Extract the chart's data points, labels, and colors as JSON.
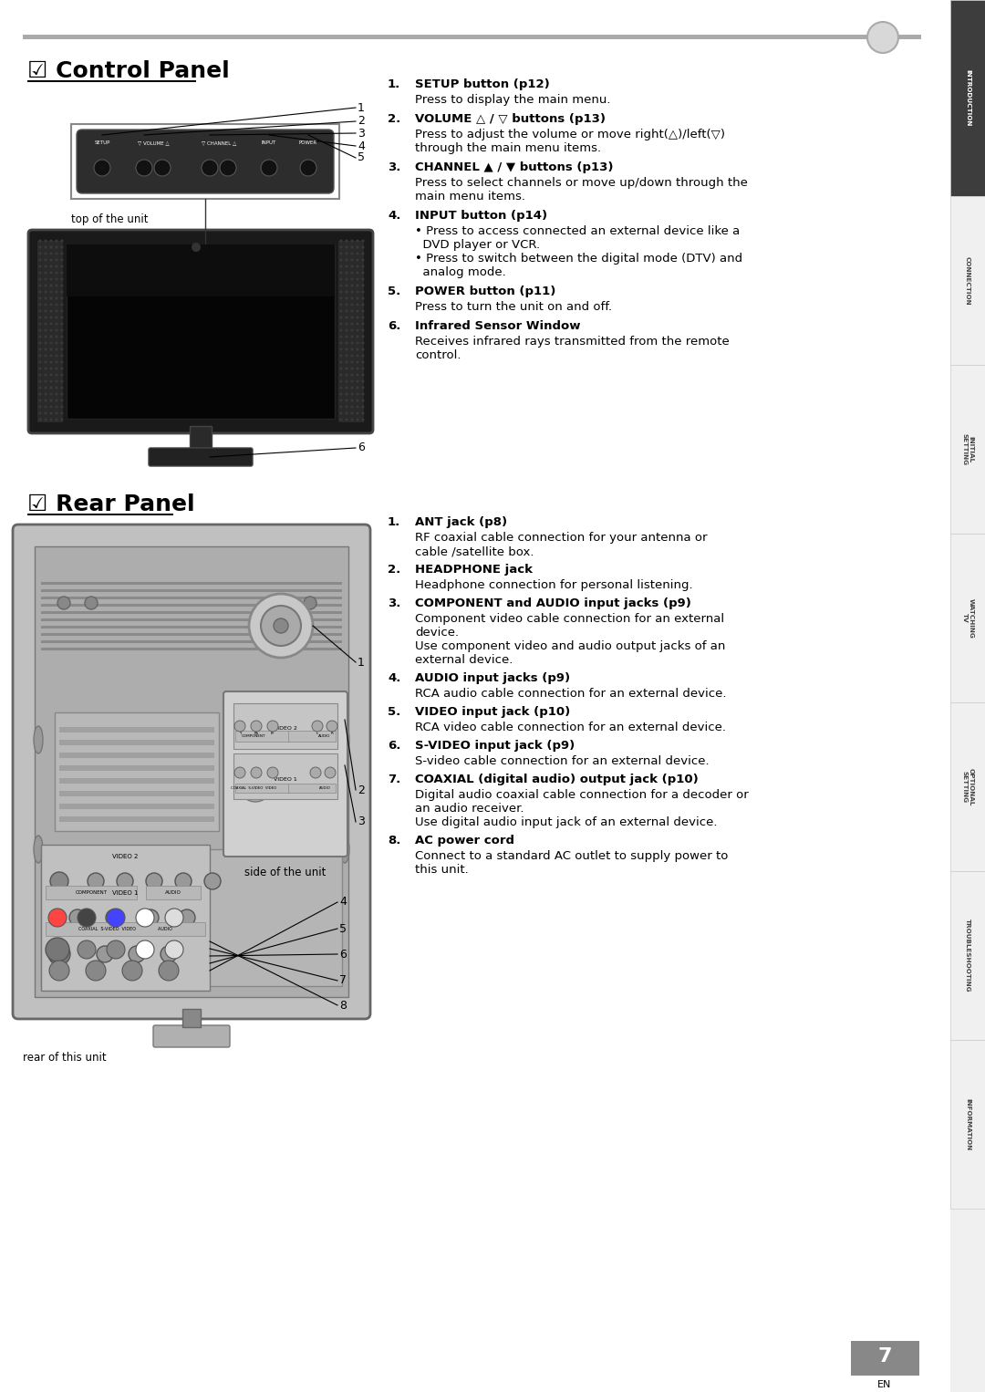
{
  "page_bg": "#ffffff",
  "sidebar_bg": "#3d3d3d",
  "sidebar_labels": [
    "INTRODUCTION",
    "CONNECTION",
    "INITIAL  SETTING",
    "WATCHING  TV",
    "OPTIONAL  SETTING",
    "TROUBLESHOOTING",
    "INFORMATION"
  ],
  "top_line_color": "#999999",
  "top_circle_color": "#cccccc",
  "section1_title": "☑ Control Panel",
  "section2_title": "☑ Rear Panel",
  "control_panel_items": [
    {
      "num": "1.",
      "bold": "SETUP button",
      "ref": " (p12)",
      "text": "Press to display the main menu."
    },
    {
      "num": "2.",
      "bold": "VOLUME △ / ▽ buttons",
      "ref": " (p13)",
      "text": "Press to adjust the volume or move right(△)/left(▽)\nthrough the main menu items."
    },
    {
      "num": "3.",
      "bold": "CHANNEL ▲ / ▼ buttons",
      "ref": " (p13)",
      "text": "Press to select channels or move up/down through the\nmain menu items."
    },
    {
      "num": "4.",
      "bold": "INPUT button",
      "ref": " (p14)",
      "text": "• Press to access connected an external device like a\n  DVD player or VCR.\n• Press to switch between the digital mode (DTV) and\n  analog mode."
    },
    {
      "num": "5.",
      "bold": "POWER button",
      "ref": " (p11)",
      "text": "Press to turn the unit on and off."
    },
    {
      "num": "6.",
      "bold": "Infrared Sensor Window",
      "ref": "",
      "text": "Receives infrared rays transmitted from the remote\ncontrol."
    }
  ],
  "rear_panel_items": [
    {
      "num": "1.",
      "bold": "ANT jack",
      "ref": " (p8)",
      "text": "RF coaxial cable connection for your antenna or\ncable /satellite box."
    },
    {
      "num": "2.",
      "bold": "HEADPHONE jack",
      "ref": "",
      "text": "Headphone connection for personal listening."
    },
    {
      "num": "3.",
      "bold": "COMPONENT and AUDIO input jacks",
      "ref": " (p9)",
      "text": "Component video cable connection for an external\ndevice.\nUse component video and audio output jacks of an\nexternal device."
    },
    {
      "num": "4.",
      "bold": "AUDIO input jacks",
      "ref": " (p9)",
      "text": "RCA audio cable connection for an external device."
    },
    {
      "num": "5.",
      "bold": "VIDEO input jack",
      "ref": " (p10)",
      "text": "RCA video cable connection for an external device."
    },
    {
      "num": "6.",
      "bold": "S-VIDEO input jack",
      "ref": " (p9)",
      "text": "S-video cable connection for an external device."
    },
    {
      "num": "7.",
      "bold": "COAXIAL (digital audio) output jack",
      "ref": " (p10)",
      "text": "Digital audio coaxial cable connection for a decoder or\nan audio receiver.\nUse digital audio input jack of an external device."
    },
    {
      "num": "8.",
      "bold": "AC power cord",
      "ref": "",
      "text": "Connect to a standard AC outlet to supply power to\nthis unit."
    }
  ],
  "page_number": "7",
  "en_label": "EN"
}
